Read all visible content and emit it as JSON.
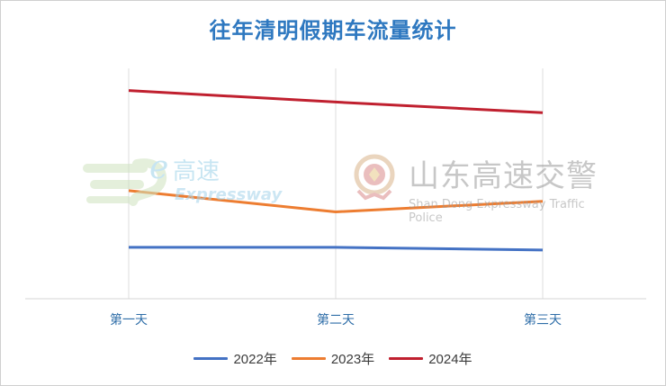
{
  "chart_data": {
    "type": "line",
    "title": "往年清明假期车流量统计",
    "categories": [
      "第一天",
      "第二天",
      "第三天"
    ],
    "series": [
      {
        "name": "2022年",
        "color": "#4472c4",
        "values": [
          58,
          58,
          55
        ]
      },
      {
        "name": "2023年",
        "color": "#ed7d31",
        "values": [
          122,
          98,
          110
        ]
      },
      {
        "name": "2024年",
        "color": "#c0202f",
        "values": [
          235,
          222,
          210
        ]
      }
    ],
    "ylim": [
      0,
      260
    ],
    "xlabel": "",
    "ylabel": "",
    "grid": "vertical",
    "legend_position": "bottom"
  },
  "watermarks": {
    "left": {
      "name": "高速",
      "subtitle": "Expressway",
      "icon": "e-expressway-logo-icon"
    },
    "right": {
      "name": "山东高速交警",
      "subtitle": "Shan Dong Expressway Traffic Police",
      "icon": "police-emblem-icon"
    }
  }
}
